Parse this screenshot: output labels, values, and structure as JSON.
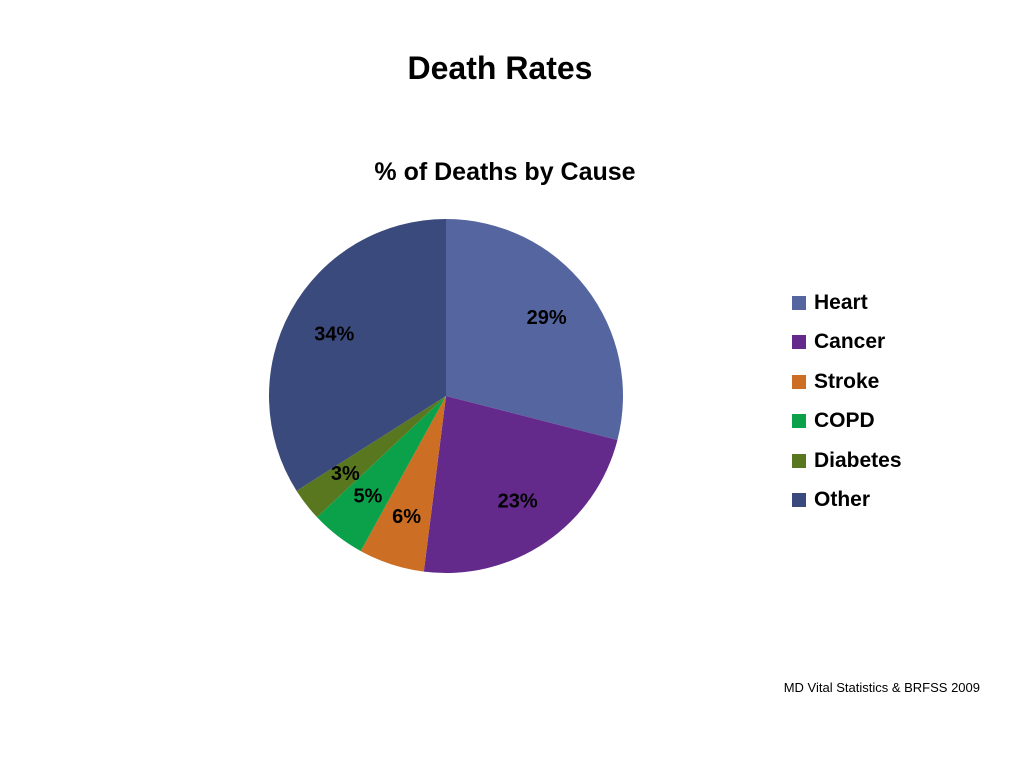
{
  "slide": {
    "title": "Death Rates",
    "source": "MD Vital Statistics & BRFSS 2009"
  },
  "chart_data": {
    "type": "pie",
    "title": "% of Deaths by Cause",
    "categories": [
      "Heart",
      "Cancer",
      "Stroke",
      "COPD",
      "Diabetes",
      "Other"
    ],
    "values": [
      29,
      23,
      6,
      5,
      3,
      34
    ],
    "data_labels": [
      "29%",
      "23%",
      "6%",
      "5%",
      "3%",
      "34%"
    ],
    "colors": [
      "#5565A0",
      "#632A8C",
      "#CC6E23",
      "#0BA14A",
      "#58771E",
      "#3B4A7C"
    ],
    "legend_position": "right"
  }
}
